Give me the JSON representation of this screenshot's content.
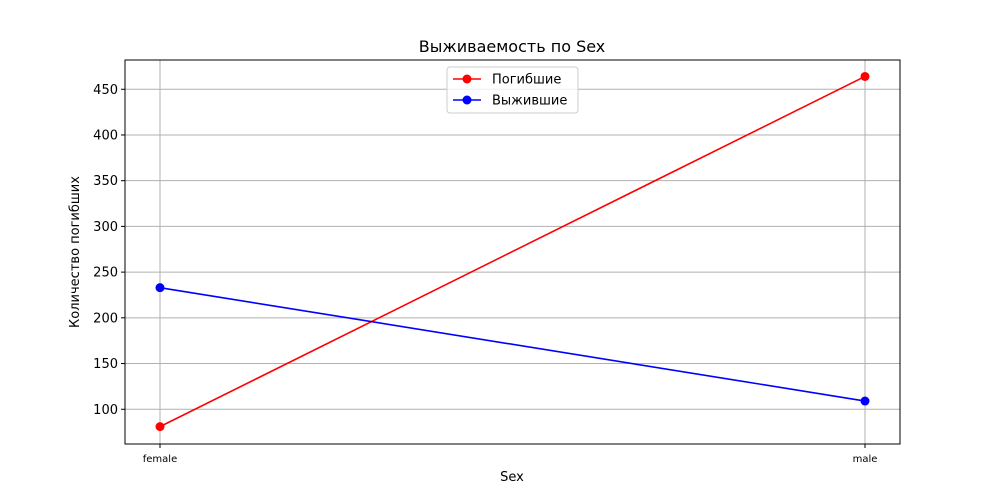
{
  "chart_data": {
    "type": "line",
    "title": "Выживаемость по Sex",
    "xlabel": "Sex",
    "ylabel": "Количество погибших",
    "categories": [
      "female",
      "male"
    ],
    "series": [
      {
        "name": "Погибшие",
        "values": [
          81,
          464
        ],
        "color": "#ff0000"
      },
      {
        "name": "Выжившие",
        "values": [
          233,
          109
        ],
        "color": "#0000ff"
      }
    ],
    "yticks": [
      100,
      150,
      200,
      250,
      300,
      350,
      400,
      450
    ],
    "ylim": [
      62,
      482
    ],
    "grid": true,
    "legend_position": "top-center"
  }
}
